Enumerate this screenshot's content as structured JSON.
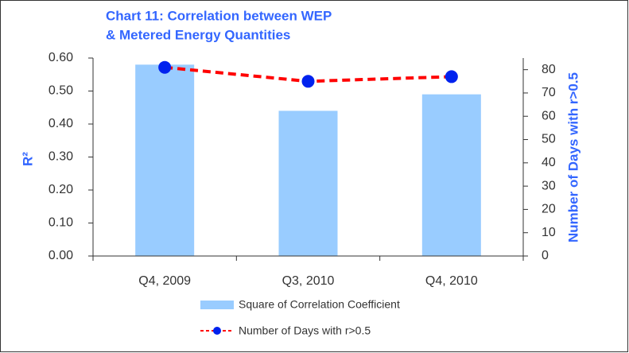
{
  "chart_data": {
    "type": "bar_line",
    "title": [
      "Chart 11: Correlation between WEP",
      "& Metered Energy Quantities"
    ],
    "y_label": "R²",
    "y2_label": "Number of Days with r>0.5",
    "categories": [
      "Q4, 2009",
      "Q3, 2010",
      "Q4, 2010"
    ],
    "series": [
      {
        "name": "Square of Correlation Coefficient",
        "type": "bar",
        "color": "#99ccff",
        "values": [
          0.58,
          0.44,
          0.49
        ]
      },
      {
        "name": "Number of Days with r>0.5",
        "type": "line",
        "axis": "y2",
        "color": "#ff0000",
        "marker_color": "#0022ee",
        "values": [
          81,
          75,
          77
        ]
      }
    ],
    "ylim": [
      0,
      0.6
    ],
    "yticks": [
      {
        "value": 0,
        "label": "0.00"
      },
      {
        "value": 0.1,
        "label": "0.10"
      },
      {
        "value": 0.2,
        "label": "0.20"
      },
      {
        "value": 0.3,
        "label": "0.30"
      },
      {
        "value": 0.4,
        "label": "0.40"
      },
      {
        "value": 0.5,
        "label": "0.50"
      },
      {
        "value": 0.6,
        "label": "0.60"
      }
    ],
    "y2lim": [
      0,
      85
    ],
    "y2ticks": [
      0,
      10,
      20,
      30,
      40,
      50,
      60,
      70,
      80
    ],
    "legend": "bottom"
  }
}
